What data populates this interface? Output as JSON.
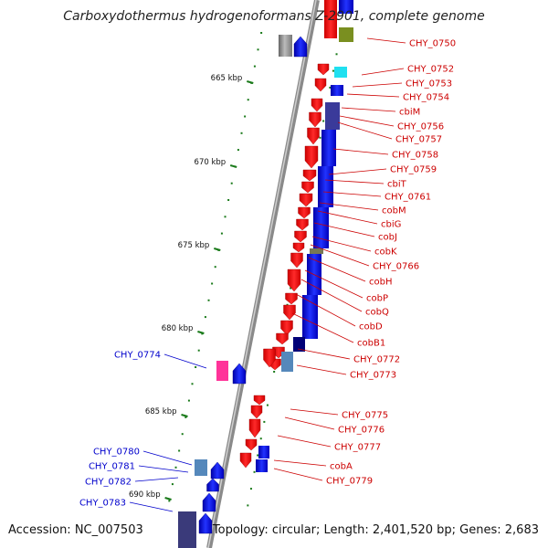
{
  "title": "Carboxydothermus hydrogenoformans Z-2901, complete genome",
  "footer": {
    "accession": "Accession: NC_007503",
    "summary": "Topology: circular; Length: 2,401,520 bp; Genes: 2,683"
  },
  "ticks": [
    "665 kbp",
    "670 kbp",
    "675 kbp",
    "680 kbp",
    "685 kbp",
    "690 kbp"
  ],
  "labels_right": [
    "CHY_0750",
    "CHY_0752",
    "CHY_0753",
    "CHY_0754",
    "cbiM",
    "CHY_0756",
    "CHY_0757",
    "CHY_0758",
    "CHY_0759",
    "cbiT",
    "CHY_0761",
    "cobM",
    "cbiG",
    "cobJ",
    "cobK",
    "CHY_0766",
    "cobH",
    "cobP",
    "cobQ",
    "cobD",
    "cobB1",
    "CHY_0772",
    "CHY_0773",
    "CHY_0775",
    "CHY_0776",
    "CHY_0777",
    "cobA",
    "CHY_0779"
  ],
  "labels_left": [
    "CHY_0774",
    "CHY_0780",
    "CHY_0781",
    "CHY_0782",
    "CHY_0783"
  ],
  "colors": {
    "forward_gene": "#ff0000",
    "reverse_gene": "#0000ff",
    "label_forward": "#cc0000",
    "label_reverse": "#0000cc",
    "backbone": "#8a8a8a",
    "tick": "#1a7a1a"
  }
}
